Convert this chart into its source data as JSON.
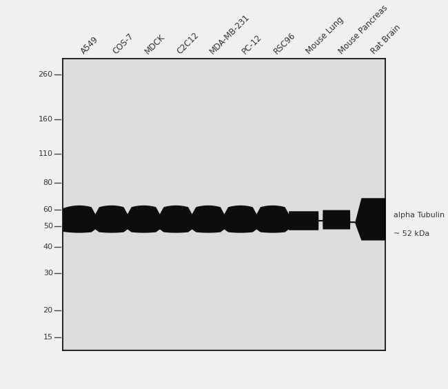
{
  "sample_labels": [
    "A549",
    "COS-7",
    "MDCK",
    "C2C12",
    "MDA-MB-231",
    "PC-12",
    "RSC96",
    "Mouse Lung",
    "Mouse Pancreas",
    "Rat Brain"
  ],
  "mw_markers": [
    260,
    160,
    110,
    80,
    60,
    50,
    40,
    30,
    20,
    15
  ],
  "band_kda": 52,
  "annotation_text_line1": "alpha Tubulin",
  "annotation_text_line2": "~ 52 kDa",
  "panel_bg": "#dcdcdc",
  "band_color": "#0d0d0d",
  "fig_bg": "#f0f0f0",
  "mw_label_color": "#333333",
  "border_color": "#000000"
}
